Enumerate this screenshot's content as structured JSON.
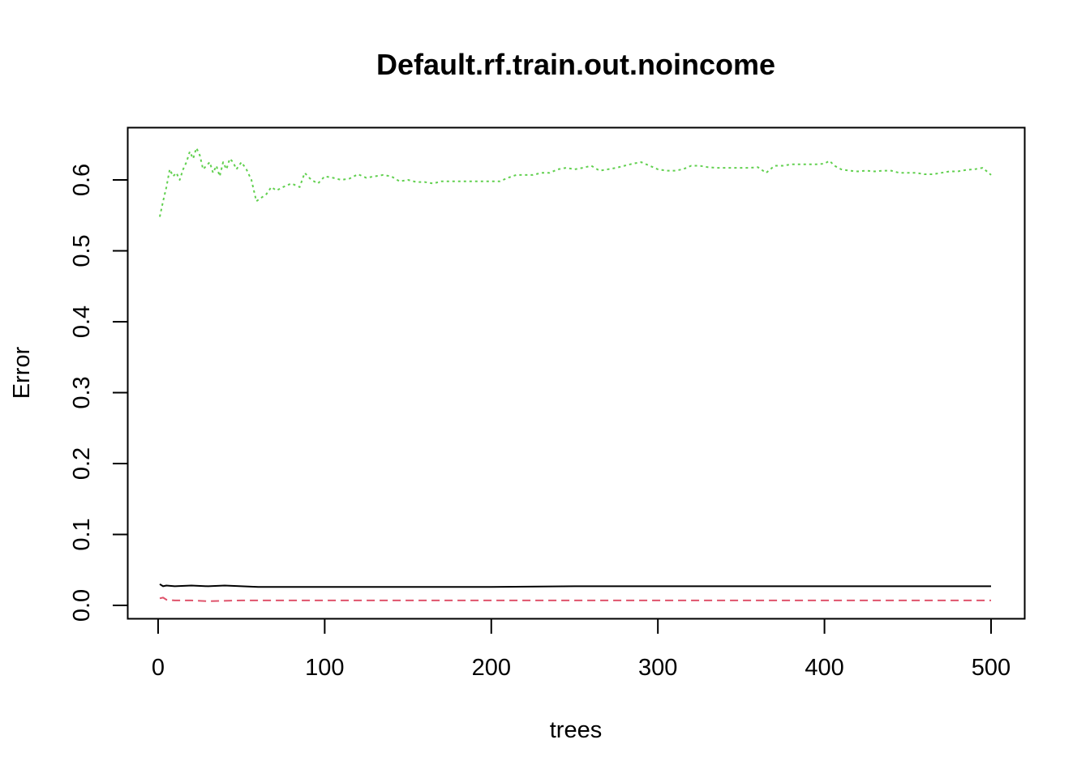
{
  "chart_data": {
    "type": "line",
    "title": "Default.rf.train.out.noincome",
    "xlabel": "trees",
    "ylabel": "Error",
    "xlim": [
      1,
      500
    ],
    "ylim": [
      0.0,
      0.6
    ],
    "x_ticks": [
      "0",
      "100",
      "200",
      "300",
      "400",
      "500"
    ],
    "y_ticks": [
      "0.0",
      "0.1",
      "0.2",
      "0.3",
      "0.4",
      "0.5",
      "0.6"
    ],
    "grid": false,
    "legend": "none",
    "series": [
      {
        "color": "#000000",
        "linestyle": "solid",
        "x": [
          1,
          3,
          5,
          10,
          20,
          30,
          40,
          50,
          60,
          80,
          100,
          150,
          200,
          250,
          300,
          350,
          400,
          450,
          500
        ],
        "y": [
          0.03,
          0.027,
          0.028,
          0.027,
          0.028,
          0.027,
          0.028,
          0.027,
          0.026,
          0.026,
          0.026,
          0.026,
          0.026,
          0.027,
          0.027,
          0.027,
          0.027,
          0.027,
          0.027
        ]
      },
      {
        "color": "#DF536B",
        "linestyle": "dashed",
        "x": [
          1,
          3,
          5,
          10,
          20,
          30,
          50,
          100,
          150,
          200,
          250,
          300,
          350,
          400,
          450,
          500
        ],
        "y": [
          0.01,
          0.011,
          0.008,
          0.007,
          0.007,
          0.006,
          0.007,
          0.007,
          0.007,
          0.007,
          0.007,
          0.007,
          0.007,
          0.007,
          0.007,
          0.007
        ]
      },
      {
        "color": "#61D04F",
        "linestyle": "dotted",
        "x": [
          1,
          3,
          5,
          7,
          9,
          11,
          13,
          15,
          17,
          19,
          21,
          23,
          25,
          27,
          29,
          31,
          33,
          35,
          37,
          39,
          41,
          43,
          45,
          47,
          50,
          53,
          56,
          59,
          62,
          65,
          68,
          71,
          75,
          80,
          85,
          88,
          92,
          96,
          100,
          105,
          110,
          115,
          120,
          125,
          130,
          135,
          140,
          145,
          150,
          155,
          160,
          165,
          170,
          180,
          190,
          200,
          205,
          210,
          215,
          220,
          225,
          230,
          235,
          240,
          245,
          250,
          255,
          260,
          265,
          270,
          275,
          280,
          285,
          290,
          295,
          300,
          305,
          310,
          315,
          320,
          325,
          330,
          335,
          340,
          345,
          350,
          355,
          360,
          365,
          370,
          375,
          380,
          385,
          390,
          395,
          400,
          403,
          406,
          410,
          415,
          420,
          425,
          430,
          435,
          440,
          445,
          450,
          455,
          460,
          465,
          470,
          475,
          480,
          485,
          490,
          495,
          500
        ],
        "y": [
          0.548,
          0.57,
          0.59,
          0.615,
          0.605,
          0.61,
          0.6,
          0.615,
          0.625,
          0.64,
          0.63,
          0.645,
          0.635,
          0.615,
          0.62,
          0.625,
          0.61,
          0.62,
          0.605,
          0.625,
          0.615,
          0.63,
          0.625,
          0.615,
          0.625,
          0.615,
          0.6,
          0.57,
          0.575,
          0.58,
          0.59,
          0.585,
          0.59,
          0.595,
          0.59,
          0.61,
          0.6,
          0.595,
          0.605,
          0.603,
          0.6,
          0.602,
          0.608,
          0.603,
          0.605,
          0.607,
          0.605,
          0.598,
          0.6,
          0.597,
          0.597,
          0.595,
          0.598,
          0.598,
          0.598,
          0.598,
          0.598,
          0.603,
          0.607,
          0.607,
          0.607,
          0.61,
          0.61,
          0.615,
          0.617,
          0.615,
          0.617,
          0.62,
          0.613,
          0.615,
          0.617,
          0.62,
          0.623,
          0.625,
          0.62,
          0.615,
          0.613,
          0.613,
          0.615,
          0.62,
          0.62,
          0.618,
          0.617,
          0.617,
          0.617,
          0.617,
          0.617,
          0.618,
          0.61,
          0.62,
          0.62,
          0.622,
          0.622,
          0.622,
          0.622,
          0.623,
          0.627,
          0.62,
          0.615,
          0.613,
          0.612,
          0.613,
          0.612,
          0.613,
          0.613,
          0.61,
          0.61,
          0.61,
          0.608,
          0.608,
          0.61,
          0.612,
          0.612,
          0.614,
          0.615,
          0.617,
          0.607
        ]
      }
    ]
  }
}
